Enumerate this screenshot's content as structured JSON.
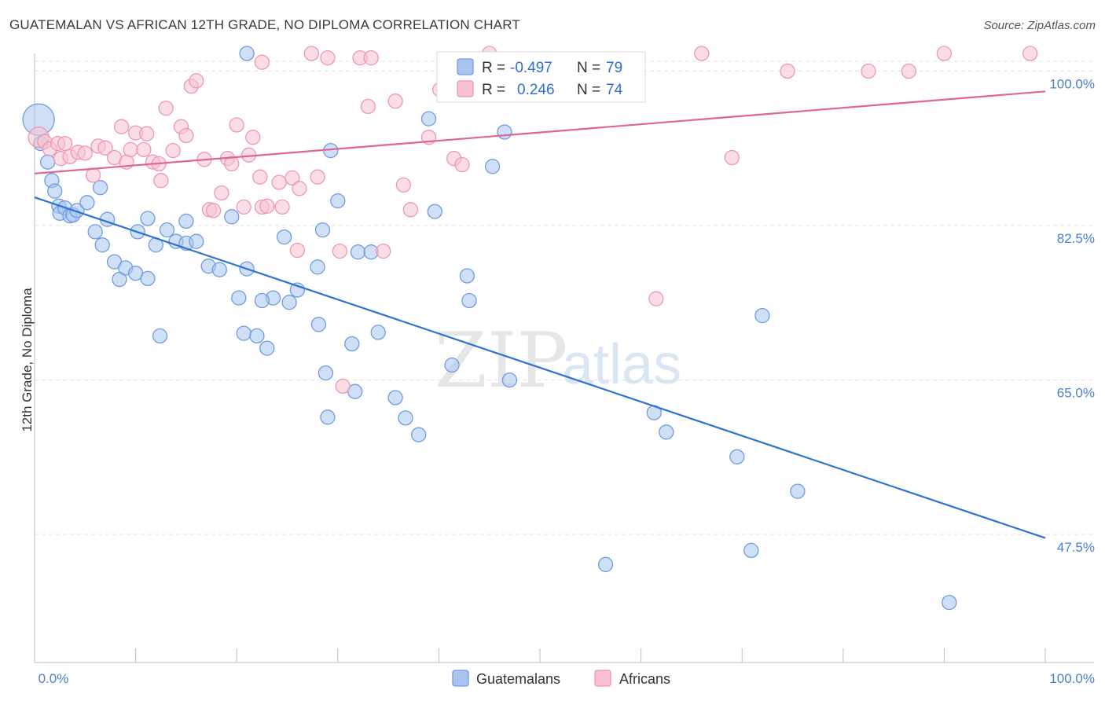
{
  "title": "GUATEMALAN VS AFRICAN 12TH GRADE, NO DIPLOMA CORRELATION CHART",
  "source": "Source: ZipAtlas.com",
  "watermark": {
    "zip": "ZIP",
    "atlas": "atlas"
  },
  "colors": {
    "blue_fill": "#a8c4ee",
    "blue_stroke": "#6f9de0",
    "blue_line": "#2f72d2",
    "pink_fill": "#f7c1d2",
    "pink_stroke": "#ee97b4",
    "pink_line": "#e06592",
    "tick_label": "#4a7fd4",
    "grid": "#e2e2e2"
  },
  "legend": {
    "rows": [
      {
        "r_label": "R = ",
        "r_value": "-0.497",
        "n_label": "N = ",
        "n_value": "79",
        "series": "blue"
      },
      {
        "r_label": "R = ",
        "r_value": "0.246",
        "n_label": "N = ",
        "n_value": "74",
        "series": "pink"
      }
    ]
  },
  "chart_data": {
    "type": "scatter",
    "title": "GUATEMALAN VS AFRICAN 12TH GRADE, NO DIPLOMA CORRELATION CHART",
    "xlabel": "",
    "ylabel": "12th Grade, No Diploma",
    "xlim": [
      0,
      100
    ],
    "ylim": [
      33,
      102
    ],
    "x_tick_labels": [
      "0.0%",
      "100.0%"
    ],
    "y_ticks": [
      {
        "value": 100,
        "label": "100.0%"
      },
      {
        "value": 82.5,
        "label": "82.5%"
      },
      {
        "value": 65,
        "label": "65.0%"
      },
      {
        "value": 47.5,
        "label": "47.5%"
      }
    ],
    "grid": true,
    "legend_position": "bottom",
    "series": [
      {
        "name": "Guatemalans",
        "color": "blue",
        "trend": {
          "x": [
            0,
            100
          ],
          "y": [
            85.7,
            47.1
          ]
        },
        "points": [
          [
            0.4,
            94.5
          ],
          [
            0.6,
            91.8
          ],
          [
            1.3,
            89.7
          ],
          [
            1.7,
            87.6
          ],
          [
            2.0,
            86.4
          ],
          [
            2.4,
            84.7
          ],
          [
            2.5,
            83.9
          ],
          [
            3.0,
            84.5
          ],
          [
            3.5,
            83.6
          ],
          [
            3.8,
            83.7
          ],
          [
            4.2,
            84.2
          ],
          [
            5.2,
            85.1
          ],
          [
            6.5,
            86.8
          ],
          [
            7.2,
            83.2
          ],
          [
            6.0,
            81.8
          ],
          [
            6.7,
            80.3
          ],
          [
            7.9,
            78.4
          ],
          [
            8.4,
            76.4
          ],
          [
            9.0,
            77.7
          ],
          [
            10.0,
            77.1
          ],
          [
            11.2,
            76.5
          ],
          [
            10.2,
            81.8
          ],
          [
            11.2,
            83.3
          ],
          [
            12.0,
            80.3
          ],
          [
            12.4,
            70.0
          ],
          [
            13.1,
            82.0
          ],
          [
            14.0,
            80.7
          ],
          [
            15.0,
            80.5
          ],
          [
            16.0,
            80.7
          ],
          [
            15.0,
            83.0
          ],
          [
            17.2,
            77.9
          ],
          [
            18.3,
            77.5
          ],
          [
            19.5,
            83.5
          ],
          [
            20.2,
            74.3
          ],
          [
            21.0,
            77.6
          ],
          [
            20.7,
            70.3
          ],
          [
            22.0,
            70.0
          ],
          [
            23.0,
            68.6
          ],
          [
            23.6,
            74.3
          ],
          [
            22.5,
            74.0
          ],
          [
            24.7,
            81.2
          ],
          [
            25.2,
            73.8
          ],
          [
            26.0,
            75.2
          ],
          [
            28.0,
            77.8
          ],
          [
            28.5,
            82.0
          ],
          [
            28.1,
            71.3
          ],
          [
            28.8,
            65.8
          ],
          [
            29.3,
            91.0
          ],
          [
            30.0,
            85.3
          ],
          [
            29.0,
            60.8
          ],
          [
            31.4,
            69.1
          ],
          [
            31.7,
            63.7
          ],
          [
            32.0,
            79.5
          ],
          [
            33.3,
            79.5
          ],
          [
            34.0,
            70.4
          ],
          [
            35.7,
            63.0
          ],
          [
            36.7,
            60.7
          ],
          [
            38.0,
            58.8
          ],
          [
            39.0,
            94.6
          ],
          [
            39.6,
            84.1
          ],
          [
            41.3,
            66.7
          ],
          [
            42.8,
            76.8
          ],
          [
            44.1,
            99.2
          ],
          [
            43.0,
            74.0
          ],
          [
            45.3,
            89.2
          ],
          [
            46.5,
            93.1
          ],
          [
            47.0,
            65.0
          ],
          [
            48.0,
            100.0
          ],
          [
            52.0,
            100.0
          ],
          [
            61.3,
            61.3
          ],
          [
            55.5,
            100.0
          ],
          [
            62.5,
            59.1
          ],
          [
            69.5,
            56.3
          ],
          [
            72.0,
            72.3
          ],
          [
            75.5,
            52.4
          ],
          [
            70.9,
            45.7
          ],
          [
            90.5,
            39.8
          ],
          [
            21.0,
            102.0
          ],
          [
            56.5,
            44.1
          ]
        ]
      },
      {
        "name": "Africans",
        "color": "pink",
        "trend": {
          "x": [
            0,
            100
          ],
          "y": [
            88.4,
            97.7
          ]
        },
        "points": [
          [
            0.4,
            92.5
          ],
          [
            1.0,
            92.0
          ],
          [
            1.5,
            91.2
          ],
          [
            2.3,
            91.8
          ],
          [
            2.6,
            90.1
          ],
          [
            3.0,
            91.8
          ],
          [
            3.5,
            90.3
          ],
          [
            4.3,
            90.8
          ],
          [
            5.0,
            90.7
          ],
          [
            5.8,
            88.2
          ],
          [
            6.3,
            91.5
          ],
          [
            7.0,
            91.3
          ],
          [
            7.9,
            90.2
          ],
          [
            8.6,
            93.7
          ],
          [
            9.1,
            89.7
          ],
          [
            9.5,
            91.1
          ],
          [
            10.0,
            93.0
          ],
          [
            10.8,
            91.1
          ],
          [
            11.1,
            92.9
          ],
          [
            11.7,
            89.7
          ],
          [
            12.3,
            89.5
          ],
          [
            12.5,
            87.6
          ],
          [
            13.0,
            95.8
          ],
          [
            13.7,
            91.0
          ],
          [
            14.5,
            93.7
          ],
          [
            15.0,
            92.7
          ],
          [
            15.5,
            98.3
          ],
          [
            16.0,
            98.9
          ],
          [
            16.8,
            90.0
          ],
          [
            17.3,
            84.3
          ],
          [
            18.5,
            86.2
          ],
          [
            19.1,
            90.1
          ],
          [
            19.5,
            89.5
          ],
          [
            20.0,
            93.9
          ],
          [
            20.7,
            84.6
          ],
          [
            21.2,
            90.5
          ],
          [
            21.6,
            92.5
          ],
          [
            22.3,
            88.0
          ],
          [
            22.5,
            84.6
          ],
          [
            23.0,
            84.7
          ],
          [
            24.2,
            87.4
          ],
          [
            24.5,
            84.6
          ],
          [
            25.5,
            87.9
          ],
          [
            26.0,
            79.7
          ],
          [
            26.2,
            86.7
          ],
          [
            27.4,
            102.0
          ],
          [
            28.0,
            88.0
          ],
          [
            29.0,
            101.5
          ],
          [
            30.2,
            79.6
          ],
          [
            32.2,
            101.5
          ],
          [
            33.0,
            96.0
          ],
          [
            33.3,
            101.5
          ],
          [
            34.5,
            79.6
          ],
          [
            35.7,
            96.6
          ],
          [
            36.5,
            87.1
          ],
          [
            37.2,
            84.3
          ],
          [
            39.0,
            92.5
          ],
          [
            40.1,
            97.9
          ],
          [
            41.5,
            90.1
          ],
          [
            42.3,
            89.4
          ],
          [
            44.1,
            100.0
          ],
          [
            45.0,
            102.0
          ],
          [
            52.8,
            100.0
          ],
          [
            61.5,
            74.2
          ],
          [
            66.0,
            102.0
          ],
          [
            69.0,
            90.2
          ],
          [
            74.5,
            100.0
          ],
          [
            82.5,
            100.0
          ],
          [
            86.5,
            100.0
          ],
          [
            90.0,
            102.0
          ],
          [
            98.5,
            102.0
          ],
          [
            22.5,
            101.0
          ],
          [
            17.7,
            84.2
          ],
          [
            30.5,
            64.3
          ]
        ]
      }
    ]
  },
  "bottom_legend": [
    {
      "label": "Guatemalans",
      "series": "blue"
    },
    {
      "label": "Africans",
      "series": "pink"
    }
  ]
}
